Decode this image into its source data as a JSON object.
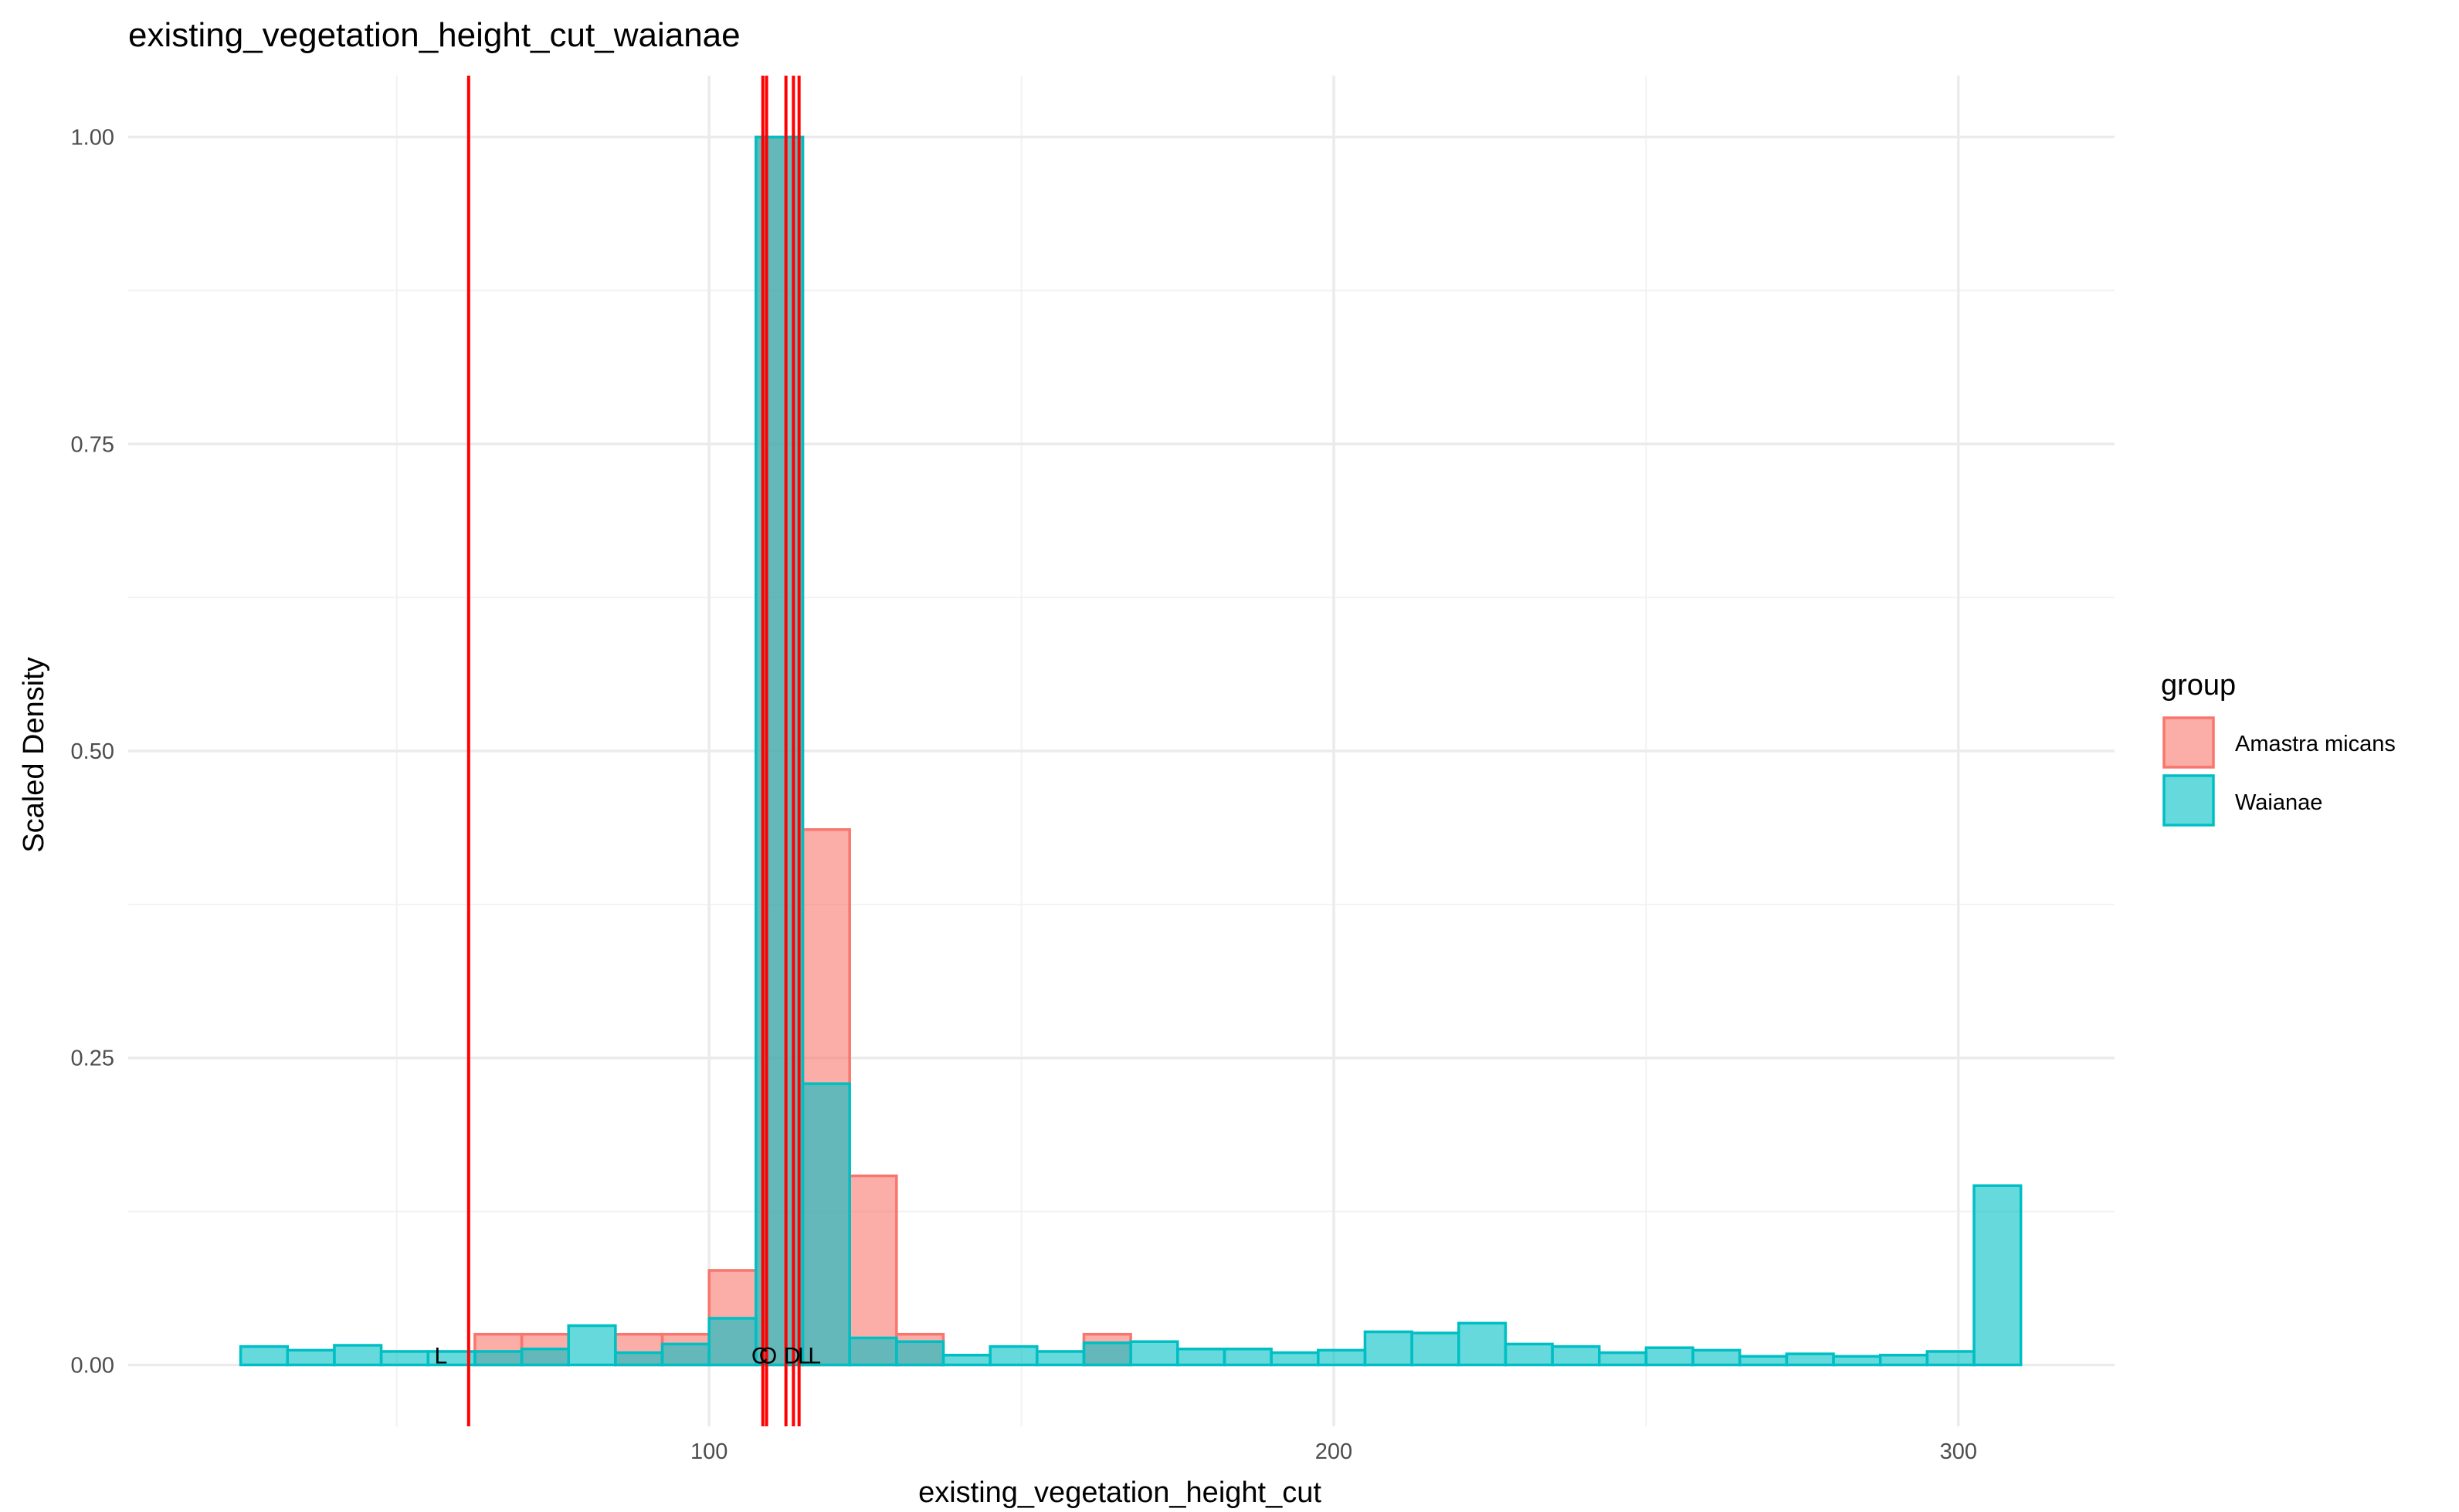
{
  "chart_data": {
    "type": "histogram",
    "title": "existing_vegetation_height_cut_waianae",
    "xlabel": "existing_vegetation_height_cut",
    "ylabel": "Scaled Density",
    "xlim": [
      7,
      325
    ],
    "ylim": [
      -0.05,
      1.05
    ],
    "x_ticks": [
      100,
      200,
      300
    ],
    "x_tick_labels": [
      "100",
      "200",
      "300"
    ],
    "x_minor_ticks": [
      50,
      150,
      250
    ],
    "y_ticks": [
      0,
      0.25,
      0.5,
      0.75,
      1.0
    ],
    "y_tick_labels": [
      "0.00",
      "0.25",
      "0.50",
      "0.75",
      "1.00"
    ],
    "y_minor_ticks": [
      0.125,
      0.375,
      0.625,
      0.875
    ],
    "grid": true,
    "legend": {
      "title": "group",
      "position": "right",
      "entries": [
        {
          "label": "Amastra micans",
          "fill": "#F8766D",
          "stroke": "#F8766D"
        },
        {
          "label": "Waianae",
          "fill": "#00BFC4",
          "stroke": "#00BFC4"
        }
      ]
    },
    "series": [
      {
        "name": "Amastra micans",
        "color": "#F8766D",
        "bins": [
          {
            "x0": 62.5,
            "x1": 70.0,
            "y": 0.025
          },
          {
            "x0": 70.0,
            "x1": 77.5,
            "y": 0.025
          },
          {
            "x0": 85.0,
            "x1": 92.5,
            "y": 0.025
          },
          {
            "x0": 92.5,
            "x1": 100.0,
            "y": 0.025
          },
          {
            "x0": 100.0,
            "x1": 107.5,
            "y": 0.077
          },
          {
            "x0": 107.5,
            "x1": 115.0,
            "y": 1.0
          },
          {
            "x0": 115.0,
            "x1": 122.5,
            "y": 0.436
          },
          {
            "x0": 122.5,
            "x1": 130.0,
            "y": 0.154
          },
          {
            "x0": 130.0,
            "x1": 137.5,
            "y": 0.025
          },
          {
            "x0": 160.0,
            "x1": 167.5,
            "y": 0.025
          }
        ]
      },
      {
        "name": "Waianae",
        "color": "#00BFC4",
        "bins": [
          {
            "x0": 25.0,
            "x1": 32.5,
            "y": 0.015
          },
          {
            "x0": 32.5,
            "x1": 40.0,
            "y": 0.012
          },
          {
            "x0": 40.0,
            "x1": 47.5,
            "y": 0.016
          },
          {
            "x0": 47.5,
            "x1": 55.0,
            "y": 0.011
          },
          {
            "x0": 55.0,
            "x1": 62.5,
            "y": 0.011
          },
          {
            "x0": 62.5,
            "x1": 70.0,
            "y": 0.011
          },
          {
            "x0": 70.0,
            "x1": 77.5,
            "y": 0.013
          },
          {
            "x0": 77.5,
            "x1": 85.0,
            "y": 0.032
          },
          {
            "x0": 85.0,
            "x1": 92.5,
            "y": 0.01
          },
          {
            "x0": 92.5,
            "x1": 100.0,
            "y": 0.017
          },
          {
            "x0": 100.0,
            "x1": 107.5,
            "y": 0.038
          },
          {
            "x0": 107.5,
            "x1": 115.0,
            "y": 1.0
          },
          {
            "x0": 115.0,
            "x1": 122.5,
            "y": 0.229
          },
          {
            "x0": 122.5,
            "x1": 130.0,
            "y": 0.022
          },
          {
            "x0": 130.0,
            "x1": 137.5,
            "y": 0.019
          },
          {
            "x0": 137.5,
            "x1": 145.0,
            "y": 0.008
          },
          {
            "x0": 145.0,
            "x1": 152.5,
            "y": 0.015
          },
          {
            "x0": 152.5,
            "x1": 160.0,
            "y": 0.011
          },
          {
            "x0": 160.0,
            "x1": 167.5,
            "y": 0.018
          },
          {
            "x0": 167.5,
            "x1": 175.0,
            "y": 0.019
          },
          {
            "x0": 175.0,
            "x1": 182.5,
            "y": 0.013
          },
          {
            "x0": 182.5,
            "x1": 190.0,
            "y": 0.013
          },
          {
            "x0": 190.0,
            "x1": 197.5,
            "y": 0.01
          },
          {
            "x0": 197.5,
            "x1": 205.0,
            "y": 0.012
          },
          {
            "x0": 205.0,
            "x1": 212.5,
            "y": 0.027
          },
          {
            "x0": 212.5,
            "x1": 220.0,
            "y": 0.026
          },
          {
            "x0": 220.0,
            "x1": 227.5,
            "y": 0.034
          },
          {
            "x0": 227.5,
            "x1": 235.0,
            "y": 0.017
          },
          {
            "x0": 235.0,
            "x1": 242.5,
            "y": 0.015
          },
          {
            "x0": 242.5,
            "x1": 250.0,
            "y": 0.01
          },
          {
            "x0": 250.0,
            "x1": 257.5,
            "y": 0.014
          },
          {
            "x0": 257.5,
            "x1": 265.0,
            "y": 0.012
          },
          {
            "x0": 265.0,
            "x1": 272.5,
            "y": 0.007
          },
          {
            "x0": 272.5,
            "x1": 280.0,
            "y": 0.009
          },
          {
            "x0": 280.0,
            "x1": 287.5,
            "y": 0.007
          },
          {
            "x0": 287.5,
            "x1": 295.0,
            "y": 0.008
          },
          {
            "x0": 295.0,
            "x1": 302.5,
            "y": 0.011
          },
          {
            "x0": 302.5,
            "x1": 310.0,
            "y": 0.146
          }
        ]
      }
    ],
    "reference_lines": [
      {
        "x": 61.5,
        "label": "L"
      },
      {
        "x": 108.6,
        "label": "C"
      },
      {
        "x": 109.2,
        "label": "O"
      },
      {
        "x": 112.3,
        "label": "D"
      },
      {
        "x": 113.5,
        "label": "L"
      },
      {
        "x": 114.4,
        "label": "L"
      }
    ],
    "reference_line_color": "#FF0000"
  }
}
